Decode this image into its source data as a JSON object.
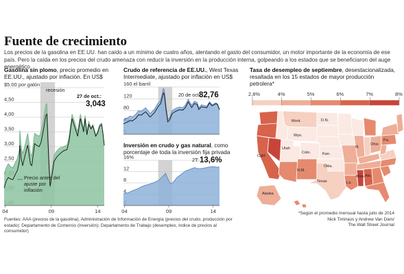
{
  "title": "Fuente de crecimiento",
  "intro": "Los precios de la gasolina en EE.UU. han caído a un mínimo de cuatro años, alentando el gasto del consumidor, un motor importante de la economía de ese país. Pero la caída en los precios del crudo amenaza con reducir la inversión en la producción interna, golpeando a los estados que se beneficiaron del auge energético.",
  "colors": {
    "gas": "#6fb08a",
    "gas_fill": "#8cc4a0",
    "oil": "#5b87bf",
    "oil_fill": "#8db1d9",
    "recession": "#d3d3d3"
  },
  "panels": {
    "gas_title_bold": "Gasolina sin plomo",
    "gas_title_rest": ", precio promedio en EE.UU., ajustado por inflación. En US$",
    "oil_title_bold": "Crudo de referencia de EE.UU.",
    "oil_title_rest": ", West Texas Intermediate, ajustado por inflación en US$",
    "inv_title_bold": "Inversión en crudo y gas natural",
    "inv_title_rest": ", como porcentaje de toda la inversión fija privada",
    "map_title_bold": "Tasa de desempleo de septiembre",
    "map_title_rest": ", desestacionalizada, resaltada en los 15 estados de mayor producción petrolera*"
  },
  "chart_data": [
    {
      "type": "area",
      "name_id": "gasoline",
      "x_ticks": [
        "04",
        "09",
        "14"
      ],
      "y_ticks": [
        "$5.00 por galón",
        "4,50",
        "4,00",
        "3,50",
        "3,00",
        "2,50",
        "2,00",
        "1,50",
        "1,00"
      ],
      "ylim": [
        1.0,
        5.0
      ],
      "xlim": [
        2004.0,
        2014.83
      ],
      "recession": [
        2007.92,
        2009.5
      ],
      "recession_label": "recesión",
      "annotation_date": "27 de oct.",
      "annotation_value": "3,043",
      "annotation_value_suffix": ":",
      "note": "Precio antes del ajuste por inflación",
      "series": [
        {
          "values": [
            [
              2004.0,
              2.08
            ],
            [
              2004.25,
              2.3
            ],
            [
              2004.45,
              2.42
            ],
            [
              2004.7,
              2.32
            ],
            [
              2004.95,
              2.28
            ],
            [
              2005.2,
              2.45
            ],
            [
              2005.45,
              2.6
            ],
            [
              2005.65,
              2.9
            ],
            [
              2005.7,
              3.55
            ],
            [
              2005.85,
              3.0
            ],
            [
              2006.0,
              2.75
            ],
            [
              2006.3,
              3.1
            ],
            [
              2006.55,
              3.45
            ],
            [
              2006.85,
              2.75
            ],
            [
              2007.0,
              2.7
            ],
            [
              2007.3,
              3.45
            ],
            [
              2007.5,
              3.4
            ],
            [
              2007.8,
              3.35
            ],
            [
              2008.0,
              3.5
            ],
            [
              2008.3,
              4.0
            ],
            [
              2008.5,
              4.4
            ],
            [
              2008.62,
              4.45
            ],
            [
              2008.85,
              2.6
            ],
            [
              2008.97,
              1.85
            ],
            [
              2009.15,
              2.15
            ],
            [
              2009.4,
              2.7
            ],
            [
              2009.7,
              2.85
            ],
            [
              2010.0,
              2.95
            ],
            [
              2010.4,
              3.0
            ],
            [
              2010.8,
              3.05
            ],
            [
              2011.0,
              3.3
            ],
            [
              2011.35,
              4.1
            ],
            [
              2011.6,
              3.85
            ],
            [
              2011.95,
              3.5
            ],
            [
              2012.25,
              4.1
            ],
            [
              2012.6,
              3.6
            ],
            [
              2012.75,
              4.05
            ],
            [
              2012.95,
              3.5
            ],
            [
              2013.15,
              3.85
            ],
            [
              2013.4,
              3.65
            ],
            [
              2013.6,
              3.75
            ],
            [
              2013.9,
              3.4
            ],
            [
              2014.1,
              3.5
            ],
            [
              2014.35,
              3.75
            ],
            [
              2014.55,
              3.8
            ],
            [
              2014.7,
              3.45
            ],
            [
              2014.83,
              3.04
            ]
          ]
        },
        {
          "values": [
            [
              2004.0,
              1.6
            ],
            [
              2004.25,
              1.85
            ],
            [
              2004.45,
              1.95
            ],
            [
              2004.7,
              1.9
            ],
            [
              2004.95,
              1.88
            ],
            [
              2005.2,
              2.05
            ],
            [
              2005.45,
              2.2
            ],
            [
              2005.65,
              2.5
            ],
            [
              2005.7,
              3.05
            ],
            [
              2005.85,
              2.6
            ],
            [
              2006.0,
              2.35
            ],
            [
              2006.3,
              2.75
            ],
            [
              2006.55,
              3.05
            ],
            [
              2006.85,
              2.4
            ],
            [
              2007.0,
              2.35
            ],
            [
              2007.3,
              3.1
            ],
            [
              2007.5,
              3.05
            ],
            [
              2007.8,
              3.0
            ],
            [
              2008.0,
              3.15
            ],
            [
              2008.3,
              3.65
            ],
            [
              2008.5,
              4.05
            ],
            [
              2008.62,
              4.1
            ],
            [
              2008.85,
              2.35
            ],
            [
              2008.97,
              1.65
            ],
            [
              2009.15,
              1.95
            ],
            [
              2009.4,
              2.5
            ],
            [
              2009.7,
              2.65
            ],
            [
              2010.0,
              2.75
            ],
            [
              2010.4,
              2.85
            ],
            [
              2010.8,
              2.9
            ],
            [
              2011.0,
              3.15
            ],
            [
              2011.35,
              3.95
            ],
            [
              2011.6,
              3.7
            ],
            [
              2011.95,
              3.35
            ],
            [
              2012.25,
              3.95
            ],
            [
              2012.6,
              3.5
            ],
            [
              2012.75,
              3.95
            ],
            [
              2012.95,
              3.4
            ],
            [
              2013.15,
              3.75
            ],
            [
              2013.4,
              3.6
            ],
            [
              2013.6,
              3.7
            ],
            [
              2013.9,
              3.35
            ],
            [
              2014.1,
              3.45
            ],
            [
              2014.35,
              3.7
            ],
            [
              2014.55,
              3.75
            ],
            [
              2014.7,
              3.42
            ],
            [
              2014.83,
              3.04
            ]
          ]
        }
      ]
    },
    {
      "type": "area",
      "name_id": "wti",
      "x_ticks": [],
      "y_ticks": [
        "160 el barril",
        "120",
        "80",
        "40",
        "0"
      ],
      "ylim": [
        0,
        160
      ],
      "xlim": [
        2004.0,
        2014.83
      ],
      "recession": [
        2007.92,
        2009.5
      ],
      "annotation_date": "20 de oct.:",
      "annotation_value": "82,76",
      "series": [
        {
          "values": [
            [
              2004.0,
              48
            ],
            [
              2004.4,
              55
            ],
            [
              2004.8,
              62
            ],
            [
              2005.0,
              58
            ],
            [
              2005.4,
              68
            ],
            [
              2005.7,
              80
            ],
            [
              2006.0,
              78
            ],
            [
              2006.5,
              90
            ],
            [
              2006.9,
              75
            ],
            [
              2007.0,
              70
            ],
            [
              2007.5,
              85
            ],
            [
              2007.9,
              105
            ],
            [
              2008.2,
              115
            ],
            [
              2008.5,
              155
            ],
            [
              2008.6,
              150
            ],
            [
              2008.8,
              95
            ],
            [
              2009.0,
              50
            ],
            [
              2009.2,
              55
            ],
            [
              2009.5,
              80
            ],
            [
              2009.9,
              88
            ],
            [
              2010.3,
              92
            ],
            [
              2010.7,
              90
            ],
            [
              2011.0,
              100
            ],
            [
              2011.3,
              118
            ],
            [
              2011.7,
              98
            ],
            [
              2012.0,
              112
            ],
            [
              2012.3,
              108
            ],
            [
              2012.5,
              90
            ],
            [
              2012.8,
              100
            ],
            [
              2013.0,
              98
            ],
            [
              2013.4,
              95
            ],
            [
              2013.7,
              110
            ],
            [
              2014.0,
              100
            ],
            [
              2014.4,
              106
            ],
            [
              2014.6,
              104
            ],
            [
              2014.83,
              83
            ]
          ]
        },
        {
          "values": [
            [
              2004.0,
              35
            ],
            [
              2004.4,
              41
            ],
            [
              2004.8,
              47
            ],
            [
              2005.0,
              45
            ],
            [
              2005.4,
              54
            ],
            [
              2005.7,
              66
            ],
            [
              2006.0,
              65
            ],
            [
              2006.5,
              76
            ],
            [
              2006.9,
              62
            ],
            [
              2007.0,
              58
            ],
            [
              2007.5,
              73
            ],
            [
              2007.9,
              93
            ],
            [
              2008.2,
              104
            ],
            [
              2008.5,
              140
            ],
            [
              2008.6,
              136
            ],
            [
              2008.8,
              85
            ],
            [
              2009.0,
              42
            ],
            [
              2009.2,
              48
            ],
            [
              2009.5,
              70
            ],
            [
              2009.9,
              78
            ],
            [
              2010.3,
              83
            ],
            [
              2010.7,
              82
            ],
            [
              2011.0,
              91
            ],
            [
              2011.3,
              110
            ],
            [
              2011.7,
              90
            ],
            [
              2012.0,
              104
            ],
            [
              2012.3,
              101
            ],
            [
              2012.5,
              84
            ],
            [
              2012.8,
              93
            ],
            [
              2013.0,
              92
            ],
            [
              2013.4,
              90
            ],
            [
              2013.7,
              106
            ],
            [
              2014.0,
              96
            ],
            [
              2014.4,
              103
            ],
            [
              2014.6,
              101
            ],
            [
              2014.83,
              83
            ]
          ]
        }
      ]
    },
    {
      "type": "area",
      "name_id": "investment",
      "x_ticks": [
        "04",
        "09",
        "14"
      ],
      "y_ticks": [
        "16%",
        "12",
        "8",
        "4",
        "0"
      ],
      "ylim": [
        0,
        16
      ],
      "xlim": [
        2004.0,
        2014.83
      ],
      "recession": [
        2007.92,
        2009.5
      ],
      "annotation_date": "2T:",
      "annotation_value": "13,6%",
      "series": [
        {
          "values": [
            [
              2004.0,
              4.2
            ],
            [
              2004.5,
              4.5
            ],
            [
              2005.0,
              5.2
            ],
            [
              2005.5,
              5.8
            ],
            [
              2006.0,
              6.6
            ],
            [
              2006.5,
              7.2
            ],
            [
              2007.0,
              7.6
            ],
            [
              2007.5,
              8.2
            ],
            [
              2008.0,
              9.0
            ],
            [
              2008.4,
              10.2
            ],
            [
              2008.75,
              11.4
            ],
            [
              2009.0,
              9.5
            ],
            [
              2009.3,
              7.6
            ],
            [
              2009.6,
              8.2
            ],
            [
              2010.0,
              9.8
            ],
            [
              2010.5,
              11.0
            ],
            [
              2011.0,
              12.2
            ],
            [
              2011.5,
              12.8
            ],
            [
              2012.0,
              13.4
            ],
            [
              2012.5,
              13.0
            ],
            [
              2013.0,
              13.2
            ],
            [
              2013.5,
              13.5
            ],
            [
              2014.0,
              13.8
            ],
            [
              2014.5,
              13.6
            ],
            [
              2014.83,
              13.6
            ]
          ]
        }
      ]
    }
  ],
  "map_legend": [
    "2,8%",
    "4%",
    "5%",
    "6%",
    "7%",
    "8%"
  ],
  "map_legend_colors": [
    "#fbe9e3",
    "#f6d0c1",
    "#eeae98",
    "#e58a6f",
    "#d7634b",
    "#c8443a"
  ],
  "map_labels": [
    "Mont.",
    "D.N.",
    "Wyo.",
    "Utah",
    "Colo.",
    "Kan.",
    "Okla.",
    "Calif.",
    "N.M.",
    "Texas",
    "Alaska",
    "Ill.",
    "Ohio",
    "Pa.",
    "La.",
    "Miss.",
    "Ala."
  ],
  "sources": "Fuentes: AAA (precios de la gasolina), Administración de Información de Energía (precios del crudo, producción por estado); Departamento de Comercio (inversión); Departamento de Trabajo (desempleo, índice de precios al consumidor)",
  "credits": [
    "*Según el promedio mensual hasta julio de 2014",
    "Nick Timiraos y Andrew Van Dam/",
    "The Wall Street Journal"
  ]
}
